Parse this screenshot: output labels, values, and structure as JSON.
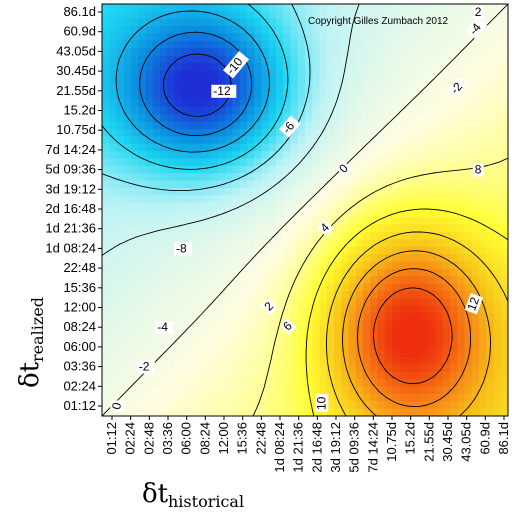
{
  "chart_data": {
    "type": "heatmap",
    "copyright": "Copyright Gilles Zumbach 2012",
    "xlabel": {
      "symbol": "δt",
      "subscript": "historical"
    },
    "ylabel": {
      "symbol": "δt",
      "subscript": "realized"
    },
    "x_ticks": [
      "01:12",
      "02:24",
      "02:48",
      "03:36",
      "06:00",
      "08:24",
      "12:00",
      "15:36",
      "22:48",
      "1d 08:24",
      "1d 21:36",
      "2d 16:48",
      "3d 19:12",
      "5d 09:36",
      "7d 14:24",
      "10.75d",
      "15.2d",
      "21.55d",
      "30.45d",
      "43.05d",
      "60.9d",
      "86.1d"
    ],
    "y_ticks": [
      "01:12",
      "02:24",
      "03:36",
      "06:00",
      "08:24",
      "12:00",
      "15:36",
      "22:48",
      "1d 08:24",
      "1d 21:36",
      "2d 16:48",
      "3d 19:12",
      "5d 09:36",
      "7d 14:24",
      "10.75d",
      "15.2d",
      "21.55d",
      "30.45d",
      "43.05d",
      "60.9d",
      "86.1d"
    ],
    "contour_levels": [
      -12,
      -10,
      -8,
      -6,
      -4,
      -2,
      0,
      2,
      4,
      6,
      8,
      10,
      12
    ],
    "contour_labels": [
      {
        "text": "-12"
      },
      {
        "text": "-10"
      },
      {
        "text": "-8"
      },
      {
        "text": "-6"
      },
      {
        "text": "-4"
      },
      {
        "text": "-4"
      },
      {
        "text": "-2"
      },
      {
        "text": "-2"
      },
      {
        "text": "0"
      },
      {
        "text": "2"
      },
      {
        "text": "2"
      },
      {
        "text": "4"
      },
      {
        "text": "6"
      },
      {
        "text": "8"
      },
      {
        "text": "10"
      },
      {
        "text": "12"
      },
      {
        "text": "0"
      }
    ],
    "extrema": {
      "min": {
        "value": -13,
        "x_tick": "08:24",
        "y_tick": "21.55d"
      },
      "max": {
        "value": 14,
        "x_tick": "15.2d",
        "y_tick": "08:24"
      }
    },
    "colormap": [
      "#1e2fd6",
      "#0a8fe0",
      "#1ed7f2",
      "#bdf3f6",
      "#fffde0",
      "#ffff33",
      "#f8c61a",
      "#f67a15",
      "#ee2e0c"
    ]
  }
}
